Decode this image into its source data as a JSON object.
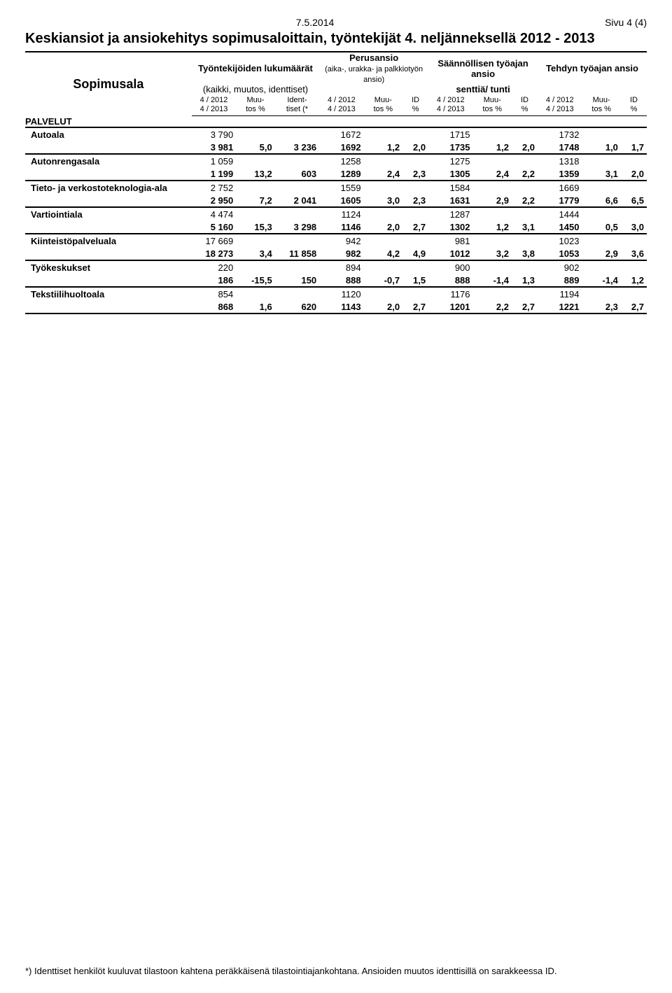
{
  "meta": {
    "date": "7.5.2014",
    "page": "Sivu 4 (4)",
    "title": "Keskiansiot ja ansiokehitys sopimusaloittain, työntekijät 4. neljänneksellä 2012 - 2013",
    "row_header": "Sopimusala",
    "group_headers": {
      "employees": "Työntekijöiden lukumäärät",
      "employees_sub": "(kaikki, muutos, identtiset)",
      "basic": "Perusansio",
      "basic_sub": "(aika-, urakka- ja palkkiotyön ansio)",
      "regular": "Säännöllisen työajan ansio",
      "done": "Tehdyn työajan ansio",
      "unit": "senttiä/ tunti"
    },
    "col_period_top": "4 / 2012",
    "col_period_bot": "4 /  2013",
    "col_change": "Muu-\ntos %",
    "col_ident": "Ident-\ntiset (*",
    "col_id": "ID\n%",
    "section": "PALVELUT",
    "footnote": "*) Identtiset henkilöt kuuluvat tilastoon kahtena peräkkäisenä tilastointiajankohtana. Ansioiden muutos identtisillä on sarakkeessa ID."
  },
  "rows": [
    {
      "name": "Autoala",
      "a": [
        "3 790",
        "",
        "",
        "1672",
        "",
        "",
        "1715",
        "",
        "",
        "1732",
        "",
        ""
      ],
      "b": [
        "3 981",
        "5,0",
        "3 236",
        "1692",
        "1,2",
        "2,0",
        "1735",
        "1,2",
        "2,0",
        "1748",
        "1,0",
        "1,7"
      ]
    },
    {
      "name": "Autonrengasala",
      "a": [
        "1 059",
        "",
        "",
        "1258",
        "",
        "",
        "1275",
        "",
        "",
        "1318",
        "",
        ""
      ],
      "b": [
        "1 199",
        "13,2",
        "603",
        "1289",
        "2,4",
        "2,3",
        "1305",
        "2,4",
        "2,2",
        "1359",
        "3,1",
        "2,0"
      ]
    },
    {
      "name": "Tieto- ja verkostoteknologia-ala",
      "a": [
        "2 752",
        "",
        "",
        "1559",
        "",
        "",
        "1584",
        "",
        "",
        "1669",
        "",
        ""
      ],
      "b": [
        "2 950",
        "7,2",
        "2 041",
        "1605",
        "3,0",
        "2,3",
        "1631",
        "2,9",
        "2,2",
        "1779",
        "6,6",
        "6,5"
      ]
    },
    {
      "name": "Vartiointiala",
      "a": [
        "4 474",
        "",
        "",
        "1124",
        "",
        "",
        "1287",
        "",
        "",
        "1444",
        "",
        ""
      ],
      "b": [
        "5 160",
        "15,3",
        "3 298",
        "1146",
        "2,0",
        "2,7",
        "1302",
        "1,2",
        "3,1",
        "1450",
        "0,5",
        "3,0"
      ]
    },
    {
      "name": "Kiinteistöpalveluala",
      "a": [
        "17 669",
        "",
        "",
        "942",
        "",
        "",
        "981",
        "",
        "",
        "1023",
        "",
        ""
      ],
      "b": [
        "18 273",
        "3,4",
        "11 858",
        "982",
        "4,2",
        "4,9",
        "1012",
        "3,2",
        "3,8",
        "1053",
        "2,9",
        "3,6"
      ]
    },
    {
      "name": "Työkeskukset",
      "a": [
        "220",
        "",
        "",
        "894",
        "",
        "",
        "900",
        "",
        "",
        "902",
        "",
        ""
      ],
      "b": [
        "186",
        "-15,5",
        "150",
        "888",
        "-0,7",
        "1,5",
        "888",
        "-1,4",
        "1,3",
        "889",
        "-1,4",
        "1,2"
      ]
    },
    {
      "name": "Tekstiilihuoltoala",
      "a": [
        "854",
        "",
        "",
        "1120",
        "",
        "",
        "1176",
        "",
        "",
        "1194",
        "",
        ""
      ],
      "b": [
        "868",
        "1,6",
        "620",
        "1143",
        "2,0",
        "2,7",
        "1201",
        "2,2",
        "2,7",
        "1221",
        "2,3",
        "2,7"
      ]
    }
  ]
}
